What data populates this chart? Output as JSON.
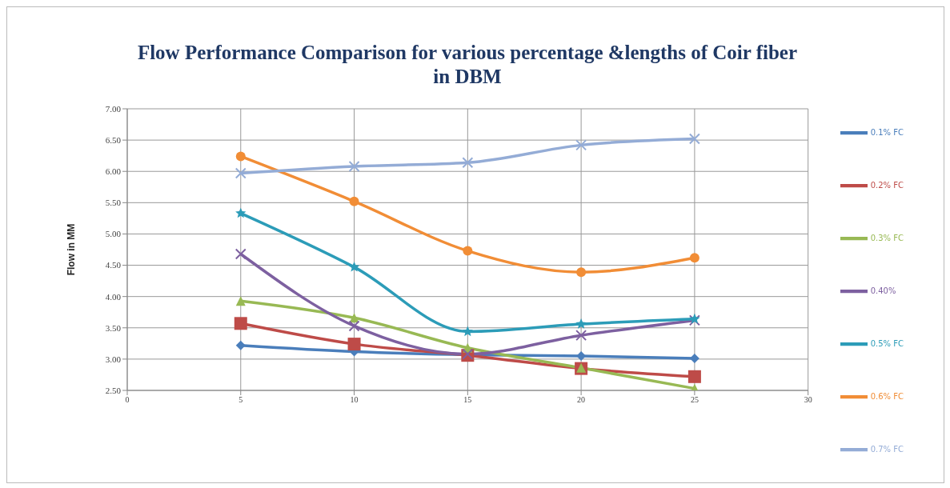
{
  "chart_data": {
    "type": "line",
    "title": "Flow Performance Comparison  for various  percentage &lengths of Coir fiber in DBM",
    "ylabel": "Flow in MM",
    "x": [
      5,
      10,
      15,
      20,
      25
    ],
    "series": [
      {
        "name": "0.1% FC",
        "color": "#4a7ebb",
        "marker": "diamond",
        "values": [
          3.22,
          3.12,
          3.07,
          3.05,
          3.01
        ]
      },
      {
        "name": "0.2% FC",
        "color": "#be4b48",
        "marker": "square",
        "values": [
          3.57,
          3.24,
          3.06,
          2.85,
          2.72
        ]
      },
      {
        "name": "0.3% FC",
        "color": "#98b954",
        "marker": "triangle",
        "values": [
          3.93,
          3.66,
          3.18,
          2.86,
          2.53
        ]
      },
      {
        "name": "0.40%",
        "color": "#7d60a0",
        "marker": "cross",
        "values": [
          4.68,
          3.53,
          3.08,
          3.38,
          3.62
        ]
      },
      {
        "name": "0.5% FC",
        "color": "#2c9cb8",
        "marker": "star",
        "values": [
          5.33,
          4.47,
          3.44,
          3.56,
          3.64
        ]
      },
      {
        "name": "0.6% FC",
        "color": "#f18d36",
        "marker": "circle",
        "values": [
          6.24,
          5.52,
          4.73,
          4.39,
          4.62
        ]
      },
      {
        "name": "0.7% FC",
        "color": "#94acd6",
        "marker": "cross",
        "values": [
          5.97,
          6.08,
          6.14,
          6.42,
          6.52
        ]
      }
    ],
    "xlim": [
      0,
      30
    ],
    "xticks": [
      0,
      5,
      10,
      15,
      20,
      25,
      30
    ],
    "ylim": [
      2.5,
      7
    ],
    "yticks": [
      {
        "value": 2.5,
        "label": "2.50"
      },
      {
        "value": 3,
        "label": "3.00"
      },
      {
        "value": 3.5,
        "label": "3.50"
      },
      {
        "value": 4,
        "label": "4.00"
      },
      {
        "value": 4.5,
        "label": "4.50"
      },
      {
        "value": 5,
        "label": "5.00"
      },
      {
        "value": 5.5,
        "label": "5.50"
      },
      {
        "value": 6,
        "label": "6.00"
      },
      {
        "value": 6.5,
        "label": "6.50"
      },
      {
        "value": 7,
        "label": "7.00"
      }
    ],
    "grid": true,
    "legend": "right"
  }
}
